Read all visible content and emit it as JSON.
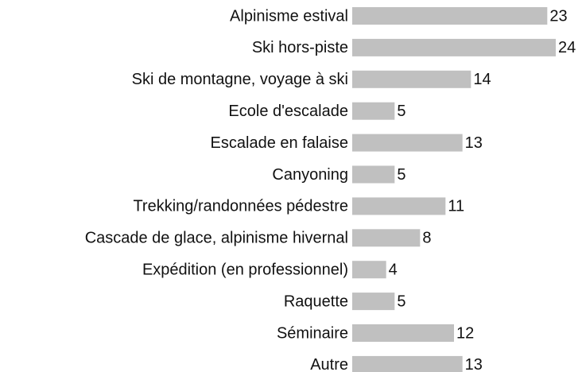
{
  "chart_data": {
    "type": "bar",
    "categories": [
      "Alpinisme estival",
      "Ski hors-piste",
      "Ski de montagne, voyage à ski",
      "Ecole d'escalade",
      "Escalade en falaise",
      "Canyoning",
      "Trekking/randonnées pédestre",
      "Cascade de glace, alpinisme hivernal",
      "Expédition (en professionnel)",
      "Raquette",
      "Séminaire",
      "Autre"
    ],
    "values": [
      23,
      24,
      14,
      5,
      13,
      5,
      11,
      8,
      4,
      5,
      12,
      13
    ],
    "color": "#c0c0c0"
  }
}
